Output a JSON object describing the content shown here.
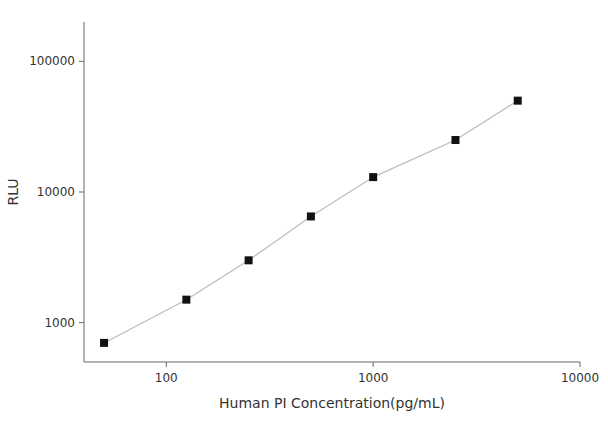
{
  "chart_data": {
    "type": "line",
    "xlabel": "Human PI Concentration(pg/mL)",
    "ylabel": "RLU",
    "x": [
      50,
      125,
      250,
      500,
      1000,
      2500,
      5000
    ],
    "values": [
      700,
      1500,
      3000,
      6500,
      13000,
      25000,
      50000
    ],
    "color": "#bbbbbb",
    "colors": [
      "#111111",
      "#111111",
      "#111111",
      "#111111",
      "#111111",
      "#111111",
      "#111111"
    ],
    "marker": "square",
    "log": true,
    "grid": false,
    "xlim": [
      40,
      10000
    ],
    "ylim": [
      500,
      200000
    ],
    "xticks": [
      100,
      1000,
      10000
    ],
    "yticks": [
      1000,
      10000,
      100000
    ]
  }
}
